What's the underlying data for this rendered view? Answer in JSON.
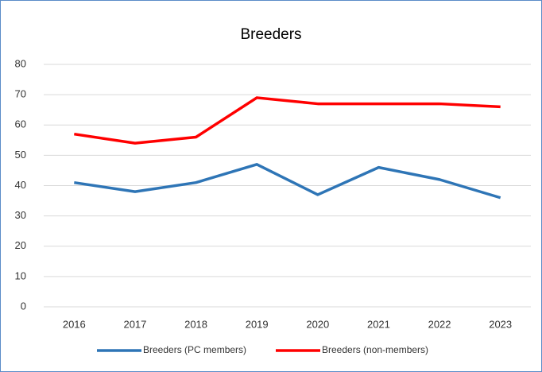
{
  "chart_data": {
    "type": "line",
    "title": "Breeders",
    "categories": [
      "2016",
      "2017",
      "2018",
      "2019",
      "2020",
      "2021",
      "2022",
      "2023"
    ],
    "series": [
      {
        "name": "Breeders (PC members)",
        "color": "#2e75b6",
        "values": [
          41,
          38,
          41,
          47,
          37,
          46,
          42,
          36
        ]
      },
      {
        "name": "Breeders (non-members)",
        "color": "#ff0000",
        "values": [
          57,
          54,
          56,
          69,
          67,
          67,
          67,
          66
        ]
      }
    ],
    "ylim": [
      0,
      80
    ],
    "yticks": [
      0,
      10,
      20,
      30,
      40,
      50,
      60,
      70,
      80
    ],
    "grid": true,
    "legend": "bottom"
  }
}
